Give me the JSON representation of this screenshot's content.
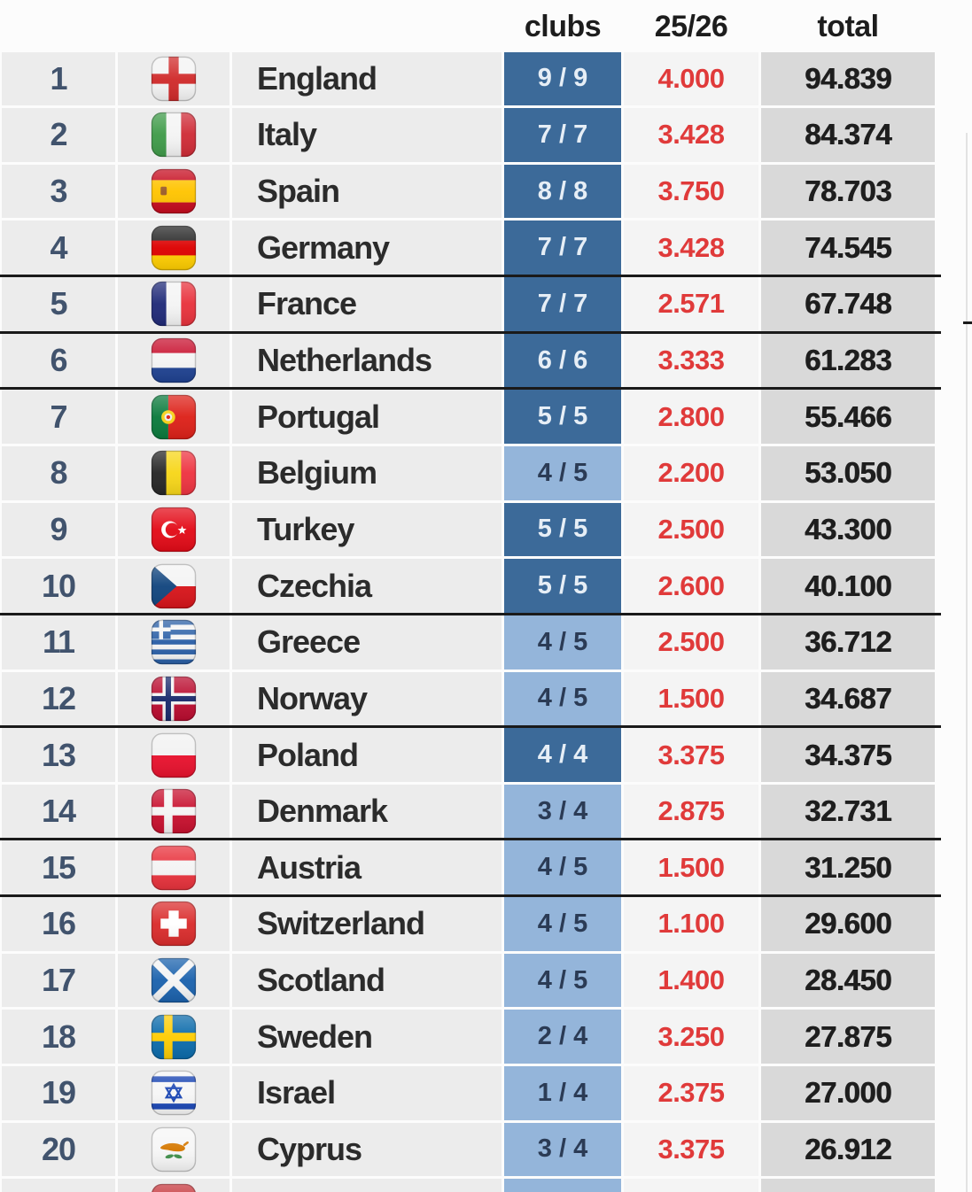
{
  "header": {
    "clubs": "clubs",
    "season": "25/26",
    "total": "total"
  },
  "colors": {
    "row_bg": "#ececec",
    "season_bg": "#f4f4f4",
    "total_bg": "#d9d9d9",
    "dark_cell": "#3c6a99",
    "light_cell": "#94b5da",
    "dark_cell_text": "#e6eef6",
    "light_cell_text": "#2b3b55",
    "value_red": "#e03a3a",
    "rank_color": "#41536d",
    "name_color": "#2b2b2b",
    "total_color": "#1e1e1e",
    "cutoff_line": "#1a1a1a"
  },
  "table": {
    "rows": [
      {
        "rank": "1",
        "country": "England",
        "clubs": "9 / 9",
        "clubs_full": true,
        "season": "4.000",
        "total": "94.839",
        "cutoff_below": false,
        "flag": {
          "name": "flag-england",
          "kind": "cross",
          "bg": "#f4f4f4",
          "fg": "#d02a2a",
          "w": 13
        }
      },
      {
        "rank": "2",
        "country": "Italy",
        "clubs": "7 / 7",
        "clubs_full": true,
        "season": "3.428",
        "total": "84.374",
        "cutoff_below": false,
        "flag": {
          "name": "flag-italy",
          "kind": "vstripes",
          "colors": [
            "#3f9b49",
            "#f4f4f4",
            "#cf2b36"
          ]
        }
      },
      {
        "rank": "3",
        "country": "Spain",
        "clubs": "8 / 8",
        "clubs_full": true,
        "season": "3.750",
        "total": "78.703",
        "cutoff_below": false,
        "flag": {
          "name": "flag-spain",
          "kind": "spain",
          "colors": [
            "#c60b1e",
            "#ffc400"
          ],
          "emblem": "#9a5b28"
        }
      },
      {
        "rank": "4",
        "country": "Germany",
        "clubs": "7 / 7",
        "clubs_full": true,
        "season": "3.428",
        "total": "74.545",
        "cutoff_below": true,
        "flag": {
          "name": "flag-germany",
          "kind": "hstripes",
          "colors": [
            "#262626",
            "#dd0000",
            "#ffce00"
          ]
        }
      },
      {
        "rank": "5",
        "country": "France",
        "clubs": "7 / 7",
        "clubs_full": true,
        "season": "2.571",
        "total": "67.748",
        "cutoff_below": true,
        "flag": {
          "name": "flag-france",
          "kind": "vstripes",
          "colors": [
            "#202a78",
            "#f4f4f4",
            "#e8323c"
          ]
        }
      },
      {
        "rank": "6",
        "country": "Netherlands",
        "clubs": "6 / 6",
        "clubs_full": true,
        "season": "3.333",
        "total": "61.283",
        "cutoff_below": true,
        "flag": {
          "name": "flag-netherlands",
          "kind": "hstripes",
          "colors": [
            "#c8102e",
            "#f4f4f4",
            "#1f4292"
          ]
        }
      },
      {
        "rank": "7",
        "country": "Portugal",
        "clubs": "5 / 5",
        "clubs_full": true,
        "season": "2.800",
        "total": "55.466",
        "cutoff_below": false,
        "flag": {
          "name": "flag-portugal",
          "kind": "portugal",
          "colors": [
            "#0a7a3c",
            "#dd2018"
          ],
          "emblem": "#f7d117"
        }
      },
      {
        "rank": "8",
        "country": "Belgium",
        "clubs": "4 / 5",
        "clubs_full": false,
        "season": "2.200",
        "total": "53.050",
        "cutoff_below": false,
        "flag": {
          "name": "flag-belgium",
          "kind": "vstripes",
          "colors": [
            "#262626",
            "#f7d618",
            "#ee3340"
          ]
        }
      },
      {
        "rank": "9",
        "country": "Turkey",
        "clubs": "5 / 5",
        "clubs_full": true,
        "season": "2.500",
        "total": "43.300",
        "cutoff_below": false,
        "flag": {
          "name": "flag-turkey",
          "kind": "crescent",
          "bg": "#e30a17",
          "fg": "#ffffff"
        }
      },
      {
        "rank": "10",
        "country": "Czechia",
        "clubs": "5 / 5",
        "clubs_full": true,
        "season": "2.600",
        "total": "40.100",
        "cutoff_below": true,
        "flag": {
          "name": "flag-czechia",
          "kind": "czech",
          "colors": [
            "#f4f4f4",
            "#d7141a",
            "#11457e"
          ]
        }
      },
      {
        "rank": "11",
        "country": "Greece",
        "clubs": "4 / 5",
        "clubs_full": false,
        "season": "2.500",
        "total": "36.712",
        "cutoff_below": false,
        "flag": {
          "name": "flag-greece",
          "kind": "greece",
          "colors": [
            "#2a5fa6",
            "#f4f4f4"
          ]
        }
      },
      {
        "rank": "12",
        "country": "Norway",
        "clubs": "4 / 5",
        "clubs_full": false,
        "season": "1.500",
        "total": "34.687",
        "cutoff_below": true,
        "flag": {
          "name": "flag-norway",
          "kind": "nordic",
          "bg": "#ba0c2f",
          "outer": "#f4f4f4",
          "outerW": 15,
          "inner": "#1a2a6c",
          "innerW": 7
        }
      },
      {
        "rank": "13",
        "country": "Poland",
        "clubs": "4 / 4",
        "clubs_full": true,
        "season": "3.375",
        "total": "34.375",
        "cutoff_below": false,
        "flag": {
          "name": "flag-poland",
          "kind": "hstripes",
          "colors": [
            "#f2f2f2",
            "#e8112d"
          ]
        }
      },
      {
        "rank": "14",
        "country": "Denmark",
        "clubs": "3 / 4",
        "clubs_full": false,
        "season": "2.875",
        "total": "32.731",
        "cutoff_below": true,
        "flag": {
          "name": "flag-denmark",
          "kind": "nordic",
          "bg": "#c8102e",
          "outer": "#f4f4f4",
          "outerW": 11
        }
      },
      {
        "rank": "15",
        "country": "Austria",
        "clubs": "4 / 5",
        "clubs_full": false,
        "season": "1.500",
        "total": "31.250",
        "cutoff_below": true,
        "flag": {
          "name": "flag-austria",
          "kind": "hstripes",
          "colors": [
            "#e8323c",
            "#f4f4f4",
            "#e8323c"
          ]
        }
      },
      {
        "rank": "16",
        "country": "Switzerland",
        "clubs": "4 / 5",
        "clubs_full": false,
        "season": "1.100",
        "total": "29.600",
        "cutoff_below": false,
        "flag": {
          "name": "flag-switzerland",
          "kind": "plus",
          "bg": "#da2c2c",
          "fg": "#ffffff"
        }
      },
      {
        "rank": "17",
        "country": "Scotland",
        "clubs": "4 / 5",
        "clubs_full": false,
        "season": "1.400",
        "total": "28.450",
        "cutoff_below": false,
        "flag": {
          "name": "flag-scotland",
          "kind": "saltire",
          "bg": "#1b62ad",
          "fg": "#f4f4f4"
        }
      },
      {
        "rank": "18",
        "country": "Sweden",
        "clubs": "2 / 4",
        "clubs_full": false,
        "season": "3.250",
        "total": "27.875",
        "cutoff_below": false,
        "flag": {
          "name": "flag-sweden",
          "kind": "nordic",
          "bg": "#0b6bab",
          "outer": "#fecc02",
          "outerW": 11
        }
      },
      {
        "rank": "19",
        "country": "Israel",
        "clubs": "1 / 4",
        "clubs_full": false,
        "season": "2.375",
        "total": "27.000",
        "cutoff_below": false,
        "flag": {
          "name": "flag-israel",
          "kind": "israel",
          "bg": "#f6f6f6",
          "fg": "#1a46b4"
        }
      },
      {
        "rank": "20",
        "country": "Cyprus",
        "clubs": "3 / 4",
        "clubs_full": false,
        "season": "3.375",
        "total": "26.912",
        "cutoff_below": false,
        "flag": {
          "name": "flag-cyprus",
          "kind": "cyprus",
          "bg": "#f6f6f6",
          "island": "#d57800",
          "twig": "#3f8f4a"
        }
      }
    ]
  },
  "partial_next_row": {
    "flag": {
      "name": "flag-next-country",
      "kind": "hstripes",
      "colors": [
        "#c6363c",
        "#0c4076",
        "#f4f4f4"
      ]
    },
    "clubs_full": false
  }
}
